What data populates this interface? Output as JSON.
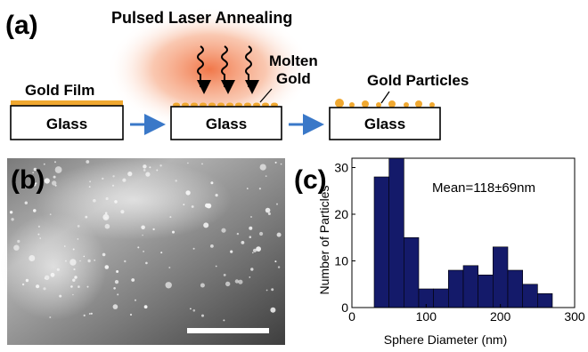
{
  "panel_a": {
    "panel_label": "(a)",
    "laser_label": "Pulsed Laser Annealing",
    "step1": {
      "label": "Gold Film",
      "substrate": "Glass"
    },
    "step2": {
      "label_line1": "Molten",
      "label_line2": "Gold",
      "substrate": "Glass"
    },
    "step3": {
      "label": "Gold Particles",
      "substrate": "Glass"
    },
    "colors": {
      "gold": "#f0a830",
      "arrow": "#3a78c8",
      "laser": "#f07040"
    }
  },
  "panel_b": {
    "panel_label": "(b)",
    "scale_bar_color": "#ffffff"
  },
  "panel_c": {
    "panel_label": "(c)",
    "annotation": "Mean=118±69nm"
  },
  "chart_data": {
    "type": "bar",
    "xlabel": "Sphere Diameter (nm)",
    "ylabel": "Number of Particles",
    "xlim": [
      0,
      300
    ],
    "ylim": [
      0,
      32
    ],
    "xticks": [
      0,
      100,
      200,
      300
    ],
    "yticks": [
      0,
      10,
      20,
      30
    ],
    "bin_edges": [
      30,
      50,
      70,
      90,
      110,
      130,
      150,
      170,
      190,
      210,
      230,
      250,
      270
    ],
    "values": [
      28,
      32,
      15,
      4,
      4,
      8,
      9,
      7,
      13,
      8,
      5,
      3
    ],
    "bar_color": "#141a6a",
    "grid": false
  }
}
